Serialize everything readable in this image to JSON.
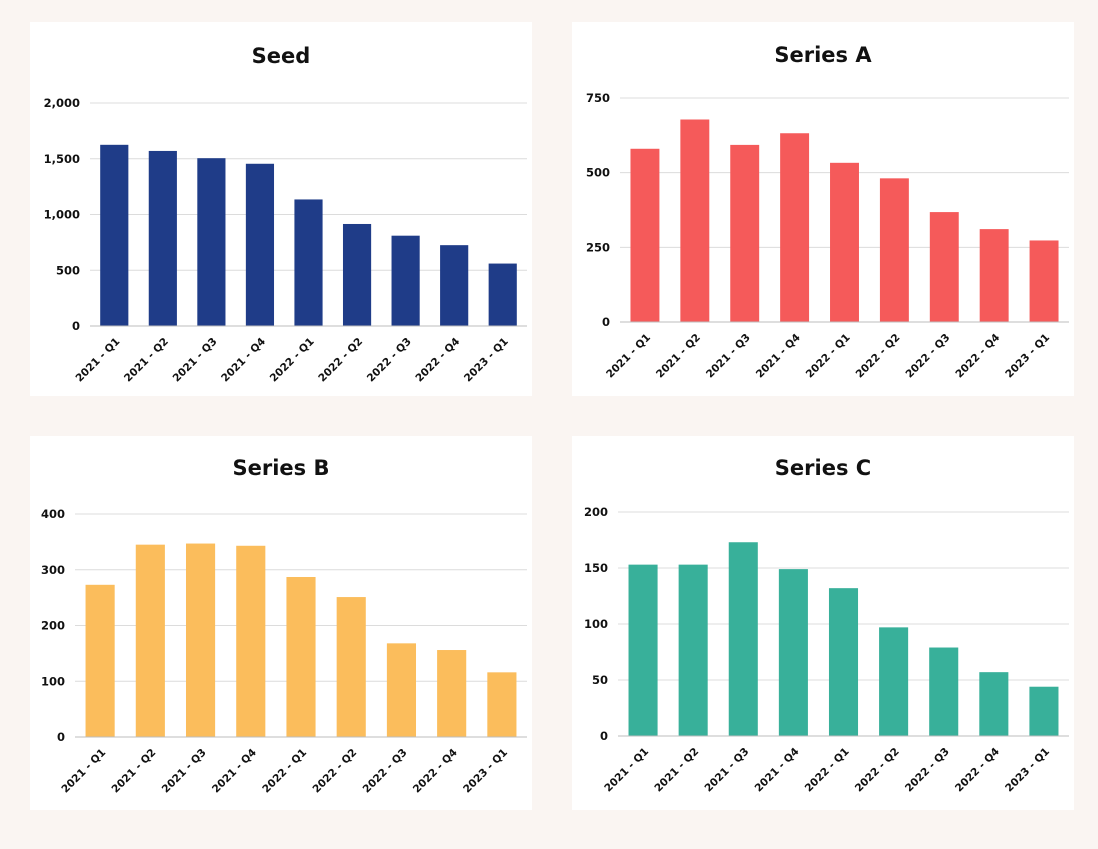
{
  "chart_data": [
    {
      "type": "bar",
      "title": "Seed",
      "categories": [
        "2021 - Q1",
        "2021 - Q2",
        "2021 - Q3",
        "2021 - Q4",
        "2022 - Q1",
        "2022 - Q2",
        "2022 - Q3",
        "2022 - Q4",
        "2023 - Q1"
      ],
      "values": [
        1625,
        1570,
        1505,
        1455,
        1135,
        915,
        810,
        725,
        560
      ],
      "ylim": [
        0,
        2000
      ],
      "yticks": [
        0,
        500,
        1000,
        1500,
        2000
      ],
      "ytick_labels": [
        "0",
        "500",
        "1,000",
        "1,500",
        "2,000"
      ],
      "color": "#1f3c88",
      "grid": true
    },
    {
      "type": "bar",
      "title": "Series A",
      "categories": [
        "2021 - Q1",
        "2021 - Q2",
        "2021 - Q3",
        "2021 - Q4",
        "2022 - Q1",
        "2022 - Q2",
        "2022 - Q3",
        "2022 - Q4",
        "2023 - Q1"
      ],
      "values": [
        580,
        678,
        593,
        632,
        533,
        481,
        368,
        311,
        273
      ],
      "ylim": [
        0,
        750
      ],
      "yticks": [
        0,
        250,
        500,
        750
      ],
      "ytick_labels": [
        "0",
        "250",
        "500",
        "750"
      ],
      "color": "#f55a5a",
      "grid": true
    },
    {
      "type": "bar",
      "title": "Series B",
      "categories": [
        "2021 - Q1",
        "2021 - Q2",
        "2021 - Q3",
        "2021 - Q4",
        "2022 - Q1",
        "2022 - Q2",
        "2022 - Q3",
        "2022 - Q4",
        "2023 - Q1"
      ],
      "values": [
        273,
        345,
        347,
        343,
        287,
        251,
        168,
        156,
        116
      ],
      "ylim": [
        0,
        400
      ],
      "yticks": [
        0,
        100,
        200,
        300,
        400
      ],
      "ytick_labels": [
        "0",
        "100",
        "200",
        "300",
        "400"
      ],
      "color": "#fbbd5c",
      "grid": true
    },
    {
      "type": "bar",
      "title": "Series C",
      "categories": [
        "2021 - Q1",
        "2021 - Q2",
        "2021 - Q3",
        "2021 - Q4",
        "2022 - Q1",
        "2022 - Q2",
        "2022 - Q3",
        "2022 - Q4",
        "2023 - Q1"
      ],
      "values": [
        153,
        153,
        173,
        149,
        132,
        97,
        79,
        57,
        44
      ],
      "ylim": [
        0,
        200
      ],
      "yticks": [
        0,
        50,
        100,
        150,
        200
      ],
      "ytick_labels": [
        "0",
        "50",
        "100",
        "150",
        "200"
      ],
      "color": "#38b09a",
      "grid": true
    }
  ]
}
